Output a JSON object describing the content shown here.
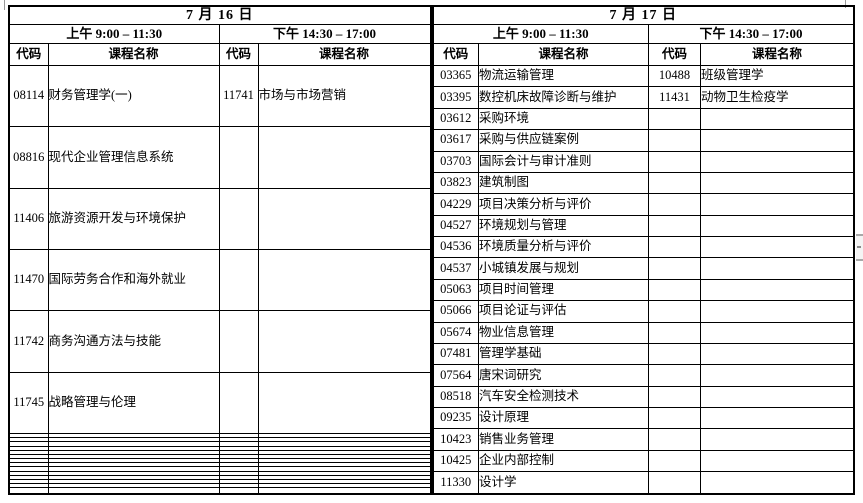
{
  "page": {
    "background_color": "#ffffff",
    "grid_color": "#000000",
    "text_color": "#000000"
  },
  "days": [
    {
      "date": "7 月 16 日",
      "row_count": 20,
      "morning": {
        "label": "上午 9:00 – 11:30",
        "code_header": "代码",
        "name_header": "课程名称",
        "courses": [
          {
            "code": "08114",
            "name": "财务管理学(一)"
          },
          {
            "code": "08816",
            "name": "现代企业管理信息系统"
          },
          {
            "code": "11406",
            "name": "旅游资源开发与环境保护"
          },
          {
            "code": "11470",
            "name": "国际劳务合作和海外就业"
          },
          {
            "code": "11742",
            "name": "商务沟通方法与技能"
          },
          {
            "code": "11745",
            "name": "战略管理与伦理"
          }
        ]
      },
      "afternoon": {
        "label": "下午 14:30 – 17:00",
        "code_header": "代码",
        "name_header": "课程名称",
        "courses": [
          {
            "code": "11741",
            "name": "市场与市场营销"
          }
        ]
      }
    },
    {
      "date": "7 月 17 日",
      "row_count": 20,
      "morning": {
        "label": "上午 9:00 – 11:30",
        "code_header": "代码",
        "name_header": "课程名称",
        "courses": [
          {
            "code": "03365",
            "name": "物流运输管理"
          },
          {
            "code": "03395",
            "name": "数控机床故障诊断与维护"
          },
          {
            "code": "03612",
            "name": "采购环境"
          },
          {
            "code": "03617",
            "name": "采购与供应链案例"
          },
          {
            "code": "03703",
            "name": "国际会计与审计准则"
          },
          {
            "code": "03823",
            "name": "建筑制图"
          },
          {
            "code": "04229",
            "name": "项目决策分析与评价"
          },
          {
            "code": "04527",
            "name": "环境规划与管理"
          },
          {
            "code": "04536",
            "name": "环境质量分析与评价"
          },
          {
            "code": "04537",
            "name": "小城镇发展与规划"
          },
          {
            "code": "05063",
            "name": "项目时间管理"
          },
          {
            "code": "05066",
            "name": "项目论证与评估"
          },
          {
            "code": "05674",
            "name": "物业信息管理"
          },
          {
            "code": "07481",
            "name": "管理学基础"
          },
          {
            "code": "07564",
            "name": "唐宋词研究"
          },
          {
            "code": "08518",
            "name": "汽车安全检测技术"
          },
          {
            "code": "09235",
            "name": "设计原理"
          },
          {
            "code": "10423",
            "name": "销售业务管理"
          },
          {
            "code": "10425",
            "name": "企业内部控制"
          },
          {
            "code": "11330",
            "name": "设计学"
          }
        ]
      },
      "afternoon": {
        "label": "下午 14:30 – 17:00",
        "code_header": "代码",
        "name_header": "课程名称",
        "courses": [
          {
            "code": "10488",
            "name": "班级管理学"
          },
          {
            "code": "11431",
            "name": "动物卫生检疫学"
          }
        ]
      }
    }
  ]
}
